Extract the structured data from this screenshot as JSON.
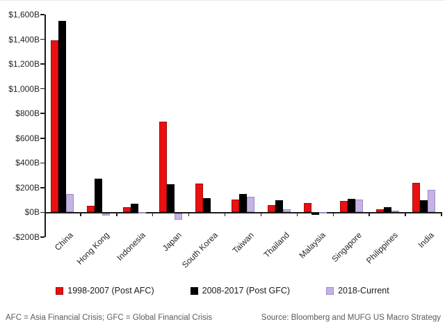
{
  "chart_data": {
    "type": "bar",
    "title": "",
    "xlabel": "",
    "ylabel": "",
    "categories": [
      "China",
      "Hong Kong",
      "Indonesia",
      "Japan",
      "South Korea",
      "Taiwan",
      "Thailand",
      "Malaysia",
      "Singapore",
      "Philippines",
      "India"
    ],
    "series": [
      {
        "name": "1998-2007 (Post AFC)",
        "color": "#eb1010",
        "border_color": "#9e0b0b",
        "values": [
          1390,
          55,
          40,
          735,
          235,
          105,
          60,
          75,
          95,
          25,
          240
        ]
      },
      {
        "name": "2008-2017 (Post GFC)",
        "color": "#000000",
        "border_color": "#000000",
        "values": [
          1550,
          270,
          70,
          230,
          115,
          150,
          100,
          -10,
          110,
          40,
          100
        ]
      },
      {
        "name": "2018-Current",
        "color": "#c5b4e3",
        "border_color": "#9c8ac4",
        "values": [
          150,
          -15,
          5,
          -50,
          0,
          125,
          25,
          5,
          105,
          15,
          185
        ]
      }
    ],
    "ylim": [
      -200,
      1600
    ],
    "y_tick_step": 200,
    "y_ticks": [
      {
        "v": 1600,
        "label": "$1,600B"
      },
      {
        "v": 1400,
        "label": "$1,400B"
      },
      {
        "v": 1200,
        "label": "$1,200B"
      },
      {
        "v": 1000,
        "label": "$1,000B"
      },
      {
        "v": 800,
        "label": "$800B"
      },
      {
        "v": 600,
        "label": "$600B"
      },
      {
        "v": 400,
        "label": "$400B"
      },
      {
        "v": 200,
        "label": "$200B"
      },
      {
        "v": 0,
        "label": "$0B"
      },
      {
        "v": -200,
        "label": "-$200B"
      }
    ],
    "grid": false,
    "legend_position": "bottom"
  },
  "footer": {
    "note": "AFC = Asia Financial Crisis; GFC = Global Financial Crisis",
    "source": "Source: Bloomberg and MUFG US Macro Strategy"
  },
  "colors": {
    "axis": "#1a1a1a",
    "axis_text": "#262626",
    "footer_text": "#595959",
    "background": "#ffffff"
  }
}
